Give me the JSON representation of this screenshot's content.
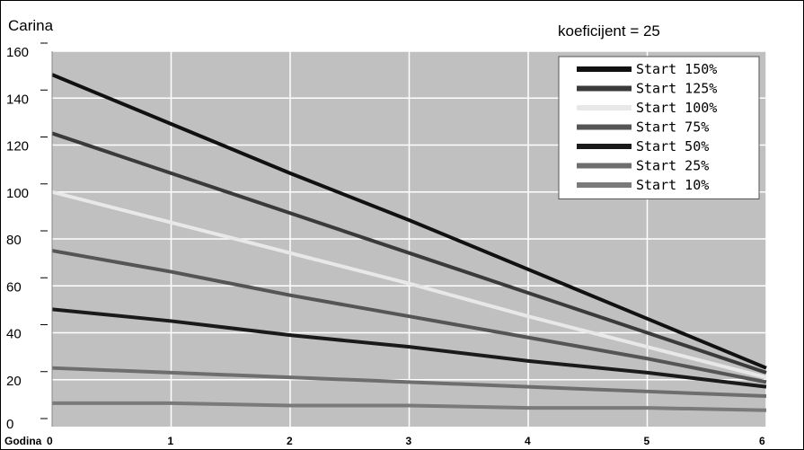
{
  "chart_data": {
    "type": "line",
    "ylabel": "Carina",
    "annotation": "koeficijent = 25",
    "xlabel_prefix": "Godina",
    "x": [
      0,
      1,
      2,
      3,
      4,
      5,
      6
    ],
    "x_tick_labels": [
      "0",
      "1",
      "2",
      "3",
      "4",
      "5",
      "6"
    ],
    "xlim": [
      0,
      6
    ],
    "ylim": [
      0,
      160
    ],
    "y_ticks": [
      0,
      20,
      40,
      60,
      80,
      100,
      120,
      140,
      160
    ],
    "grid": true,
    "legend_position": "top-right",
    "series": [
      {
        "name": "Start 150%",
        "color": "#111111",
        "values": [
          150,
          129,
          108,
          88,
          67,
          46,
          25
        ]
      },
      {
        "name": "Start 125%",
        "color": "#3a3a3a",
        "values": [
          125,
          108,
          91,
          74,
          57,
          40,
          23
        ]
      },
      {
        "name": "Start 100%",
        "color": "#e8e8e8",
        "values": [
          100,
          87,
          74,
          61,
          47,
          34,
          21
        ]
      },
      {
        "name": "Start 75%",
        "color": "#555555",
        "values": [
          75,
          66,
          56,
          47,
          38,
          29,
          19
        ]
      },
      {
        "name": "Start 50%",
        "color": "#1a1a1a",
        "values": [
          50,
          45,
          39,
          34,
          28,
          23,
          17
        ]
      },
      {
        "name": "Start 25%",
        "color": "#6e6e6e",
        "values": [
          25,
          23,
          21,
          19,
          17,
          15,
          13
        ]
      },
      {
        "name": "Start 10%",
        "color": "#7a7a7a",
        "values": [
          10,
          10,
          9,
          9,
          8,
          8,
          7
        ]
      }
    ]
  }
}
